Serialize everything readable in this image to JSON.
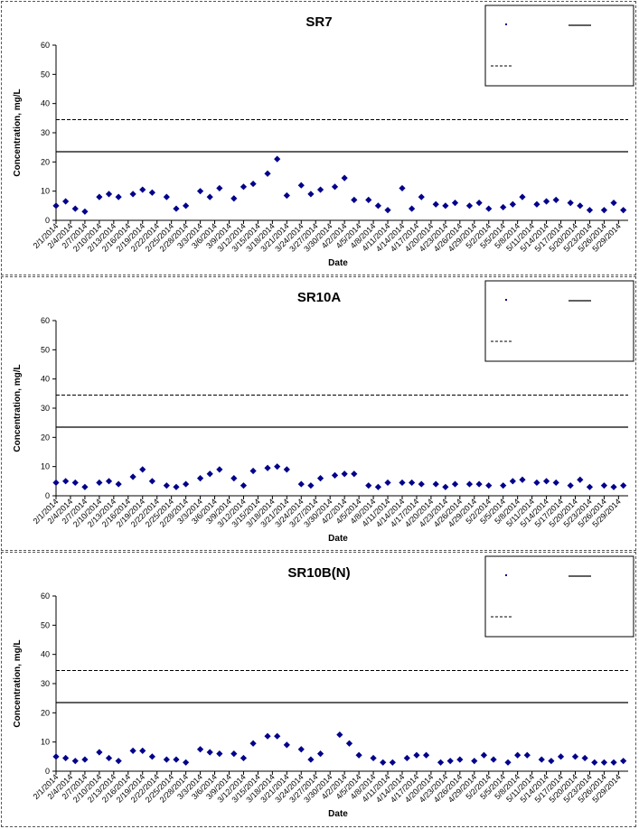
{
  "colors": {
    "marker": "#00008B",
    "line": "#000000"
  },
  "chart_data": [
    {
      "type": "scatter",
      "title": "SR7",
      "xlabel": "Date",
      "ylabel": "Concentration, mg/L",
      "ylim": [
        0,
        60
      ],
      "yticks": [
        "0",
        "10",
        "20",
        "30",
        "40",
        "50",
        "60"
      ],
      "xticks": [
        "2/1/2014",
        "2/4/2014",
        "2/7/2014",
        "2/10/2014",
        "2/13/2014",
        "2/16/2014",
        "2/19/2014",
        "2/22/2014",
        "2/25/2014",
        "2/28/2014",
        "3/3/2014",
        "3/6/2014",
        "3/9/2014",
        "3/12/2014",
        "3/15/2014",
        "3/18/2014",
        "3/21/2014",
        "3/24/2014",
        "3/27/2014",
        "3/30/2014",
        "4/2/2014",
        "4/5/2014",
        "4/8/2014",
        "4/11/2014",
        "4/14/2014",
        "4/17/2014",
        "4/20/2014",
        "4/23/2014",
        "4/26/2014",
        "4/29/2014",
        "5/2/2014",
        "5/5/2014",
        "5/8/2014",
        "5/11/2014",
        "5/14/2014",
        "5/17/2014",
        "5/20/2014",
        "5/23/2014",
        "5/26/2014",
        "5/29/2014"
      ],
      "grid": false,
      "legend_position": "top-right",
      "x_start": "2/1/2014",
      "x_end": "5/31/2014",
      "series": [
        {
          "values": [
            [
              "2/1/2014",
              5
            ],
            [
              "2/3/2014",
              6.5
            ],
            [
              "2/5/2014",
              4
            ],
            [
              "2/7/2014",
              3
            ],
            [
              "2/10/2014",
              8
            ],
            [
              "2/12/2014",
              9
            ],
            [
              "2/14/2014",
              8
            ],
            [
              "2/17/2014",
              9
            ],
            [
              "2/19/2014",
              10.5
            ],
            [
              "2/21/2014",
              9.5
            ],
            [
              "2/24/2014",
              8
            ],
            [
              "2/26/2014",
              4
            ],
            [
              "2/28/2014",
              5
            ],
            [
              "3/3/2014",
              10
            ],
            [
              "3/5/2014",
              8
            ],
            [
              "3/7/2014",
              11
            ],
            [
              "3/10/2014",
              7.5
            ],
            [
              "3/12/2014",
              11.5
            ],
            [
              "3/14/2014",
              12.5
            ],
            [
              "3/17/2014",
              16
            ],
            [
              "3/19/2014",
              21
            ],
            [
              "3/21/2014",
              8.5
            ],
            [
              "3/24/2014",
              12
            ],
            [
              "3/26/2014",
              9
            ],
            [
              "3/28/2014",
              10.5
            ],
            [
              "3/31/2014",
              11.5
            ],
            [
              "4/2/2014",
              14.5
            ],
            [
              "4/4/2014",
              7
            ],
            [
              "4/7/2014",
              7
            ],
            [
              "4/9/2014",
              5
            ],
            [
              "4/11/2014",
              3.5
            ],
            [
              "4/14/2014",
              11
            ],
            [
              "4/16/2014",
              4
            ],
            [
              "4/18/2014",
              8
            ],
            [
              "4/21/2014",
              5.5
            ],
            [
              "4/23/2014",
              5
            ],
            [
              "4/25/2014",
              6
            ],
            [
              "4/28/2014",
              5
            ],
            [
              "4/30/2014",
              6
            ],
            [
              "5/2/2014",
              4
            ],
            [
              "5/5/2014",
              4.5
            ],
            [
              "5/7/2014",
              5.5
            ],
            [
              "5/9/2014",
              8
            ],
            [
              "5/12/2014",
              5.5
            ],
            [
              "5/14/2014",
              6.5
            ],
            [
              "5/16/2014",
              7
            ],
            [
              "5/19/2014",
              6
            ],
            [
              "5/21/2014",
              5
            ],
            [
              "5/23/2014",
              3.5
            ],
            [
              "5/26/2014",
              3.5
            ],
            [
              "5/28/2014",
              6
            ],
            [
              "5/30/2014",
              3.5
            ]
          ]
        }
      ],
      "hlines": [
        {
          "value": 23.5,
          "style": "solid"
        },
        {
          "value": 34.5,
          "style": "dashed"
        }
      ]
    },
    {
      "type": "scatter",
      "title": "SR10A",
      "xlabel": "Date",
      "ylabel": "Concentration, mg/L",
      "ylim": [
        0,
        60
      ],
      "yticks": [
        "0",
        "10",
        "20",
        "30",
        "40",
        "50",
        "60"
      ],
      "xticks": [
        "2/1/2014",
        "2/4/2014",
        "2/7/2014",
        "2/10/2014",
        "2/13/2014",
        "2/16/2014",
        "2/19/2014",
        "2/22/2014",
        "2/25/2014",
        "2/28/2014",
        "3/3/2014",
        "3/6/2014",
        "3/9/2014",
        "3/12/2014",
        "3/15/2014",
        "3/18/2014",
        "3/21/2014",
        "3/24/2014",
        "3/27/2014",
        "3/30/2014",
        "4/2/2014",
        "4/5/2014",
        "4/8/2014",
        "4/11/2014",
        "4/14/2014",
        "4/17/2014",
        "4/20/2014",
        "4/23/2014",
        "4/26/2014",
        "4/29/2014",
        "5/2/2014",
        "5/5/2014",
        "5/8/2014",
        "5/11/2014",
        "5/14/2014",
        "5/17/2014",
        "5/20/2014",
        "5/23/2014",
        "5/26/2014",
        "5/29/2014"
      ],
      "grid": false,
      "legend_position": "top-right",
      "x_start": "2/1/2014",
      "x_end": "5/31/2014",
      "series": [
        {
          "values": [
            [
              "2/1/2014",
              4.5
            ],
            [
              "2/3/2014",
              5
            ],
            [
              "2/5/2014",
              4.5
            ],
            [
              "2/7/2014",
              3
            ],
            [
              "2/10/2014",
              4.5
            ],
            [
              "2/12/2014",
              5
            ],
            [
              "2/14/2014",
              4
            ],
            [
              "2/17/2014",
              6.5
            ],
            [
              "2/19/2014",
              9
            ],
            [
              "2/21/2014",
              5
            ],
            [
              "2/24/2014",
              3.5
            ],
            [
              "2/26/2014",
              3
            ],
            [
              "2/28/2014",
              4
            ],
            [
              "3/3/2014",
              6
            ],
            [
              "3/5/2014",
              7.5
            ],
            [
              "3/7/2014",
              9
            ],
            [
              "3/10/2014",
              6
            ],
            [
              "3/12/2014",
              3.5
            ],
            [
              "3/14/2014",
              8.5
            ],
            [
              "3/17/2014",
              9.5
            ],
            [
              "3/19/2014",
              10
            ],
            [
              "3/21/2014",
              9
            ],
            [
              "3/24/2014",
              4
            ],
            [
              "3/26/2014",
              3.5
            ],
            [
              "3/28/2014",
              6
            ],
            [
              "3/31/2014",
              7
            ],
            [
              "4/2/2014",
              7.5
            ],
            [
              "4/4/2014",
              7.5
            ],
            [
              "4/7/2014",
              3.5
            ],
            [
              "4/9/2014",
              3
            ],
            [
              "4/11/2014",
              4.5
            ],
            [
              "4/14/2014",
              4.5
            ],
            [
              "4/16/2014",
              4.5
            ],
            [
              "4/18/2014",
              4
            ],
            [
              "4/21/2014",
              4
            ],
            [
              "4/23/2014",
              3
            ],
            [
              "4/25/2014",
              4
            ],
            [
              "4/28/2014",
              4
            ],
            [
              "4/30/2014",
              4
            ],
            [
              "5/2/2014",
              3.5
            ],
            [
              "5/5/2014",
              3.5
            ],
            [
              "5/7/2014",
              5
            ],
            [
              "5/9/2014",
              5.5
            ],
            [
              "5/12/2014",
              4.5
            ],
            [
              "5/14/2014",
              5
            ],
            [
              "5/16/2014",
              4.5
            ],
            [
              "5/19/2014",
              3.5
            ],
            [
              "5/21/2014",
              5.5
            ],
            [
              "5/23/2014",
              3
            ],
            [
              "5/26/2014",
              3.5
            ],
            [
              "5/28/2014",
              3
            ],
            [
              "5/30/2014",
              3.5
            ]
          ]
        }
      ],
      "hlines": [
        {
          "value": 23.5,
          "style": "solid"
        },
        {
          "value": 34.5,
          "style": "dashed"
        }
      ]
    },
    {
      "type": "scatter",
      "title": "SR10B(N)",
      "xlabel": "Date",
      "ylabel": "Concentration, mg/L",
      "ylim": [
        0,
        60
      ],
      "yticks": [
        "0",
        "10",
        "20",
        "30",
        "40",
        "50",
        "60"
      ],
      "xticks": [
        "2/1/2014",
        "2/4/2014",
        "2/7/2014",
        "2/10/2014",
        "2/13/2014",
        "2/16/2014",
        "2/19/2014",
        "2/22/2014",
        "2/25/2014",
        "2/28/2014",
        "3/3/2014",
        "3/6/2014",
        "3/9/2014",
        "3/12/2014",
        "3/15/2014",
        "3/18/2014",
        "3/21/2014",
        "3/24/2014",
        "3/27/2014",
        "3/30/2014",
        "4/2/2014",
        "4/5/2014",
        "4/8/2014",
        "4/11/2014",
        "4/14/2014",
        "4/17/2014",
        "4/20/2014",
        "4/23/2014",
        "4/26/2014",
        "4/29/2014",
        "5/2/2014",
        "5/5/2014",
        "5/8/2014",
        "5/11/2014",
        "5/14/2014",
        "5/17/2014",
        "5/20/2014",
        "5/23/2014",
        "5/26/2014",
        "5/29/2014"
      ],
      "grid": false,
      "legend_position": "top-right",
      "x_start": "2/1/2014",
      "x_end": "5/31/2014",
      "series": [
        {
          "values": [
            [
              "2/1/2014",
              5
            ],
            [
              "2/3/2014",
              4.5
            ],
            [
              "2/5/2014",
              3.5
            ],
            [
              "2/7/2014",
              4
            ],
            [
              "2/10/2014",
              6.5
            ],
            [
              "2/12/2014",
              4.5
            ],
            [
              "2/14/2014",
              3.5
            ],
            [
              "2/17/2014",
              7
            ],
            [
              "2/19/2014",
              7
            ],
            [
              "2/21/2014",
              5
            ],
            [
              "2/24/2014",
              4
            ],
            [
              "2/26/2014",
              4
            ],
            [
              "2/28/2014",
              3
            ],
            [
              "3/3/2014",
              7.5
            ],
            [
              "3/5/2014",
              6.5
            ],
            [
              "3/7/2014",
              6
            ],
            [
              "3/10/2014",
              6
            ],
            [
              "3/12/2014",
              4.5
            ],
            [
              "3/14/2014",
              9.5
            ],
            [
              "3/17/2014",
              12
            ],
            [
              "3/19/2014",
              12
            ],
            [
              "3/21/2014",
              9
            ],
            [
              "3/24/2014",
              7.5
            ],
            [
              "3/26/2014",
              4
            ],
            [
              "3/28/2014",
              6
            ],
            [
              "4/1/2014",
              12.5
            ],
            [
              "4/3/2014",
              9.5
            ],
            [
              "4/5/2014",
              5.5
            ],
            [
              "4/8/2014",
              4.5
            ],
            [
              "4/10/2014",
              3
            ],
            [
              "4/12/2014",
              3
            ],
            [
              "4/15/2014",
              4.5
            ],
            [
              "4/17/2014",
              5.5
            ],
            [
              "4/19/2014",
              5.5
            ],
            [
              "4/22/2014",
              3
            ],
            [
              "4/24/2014",
              3.5
            ],
            [
              "4/26/2014",
              4
            ],
            [
              "4/29/2014",
              3.5
            ],
            [
              "5/1/2014",
              5.5
            ],
            [
              "5/3/2014",
              4
            ],
            [
              "5/6/2014",
              3
            ],
            [
              "5/8/2014",
              5.5
            ],
            [
              "5/10/2014",
              5.5
            ],
            [
              "5/13/2014",
              4
            ],
            [
              "5/15/2014",
              3.5
            ],
            [
              "5/17/2014",
              5
            ],
            [
              "5/20/2014",
              5
            ],
            [
              "5/22/2014",
              4.5
            ],
            [
              "5/24/2014",
              3
            ],
            [
              "5/26/2014",
              3
            ],
            [
              "5/28/2014",
              3
            ],
            [
              "5/30/2014",
              3.5
            ]
          ]
        }
      ],
      "hlines": [
        {
          "value": 23.5,
          "style": "solid"
        },
        {
          "value": 34.5,
          "style": "dashed"
        }
      ]
    }
  ]
}
